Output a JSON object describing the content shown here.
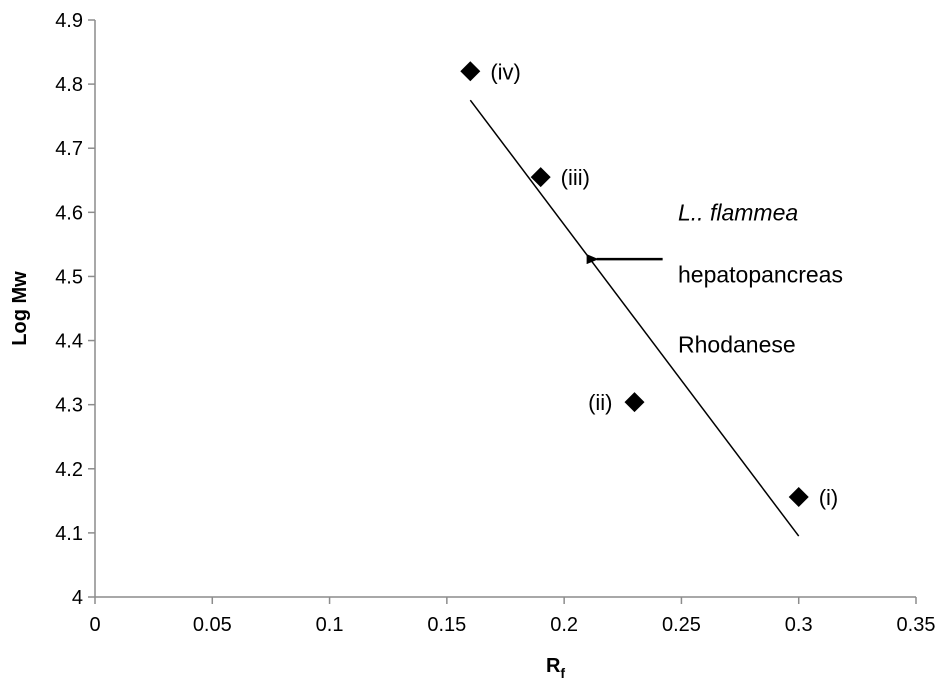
{
  "chart_data": {
    "type": "scatter",
    "title": "",
    "xlabel": "R",
    "xlabel_subscript": "f",
    "ylabel": "Log Mw",
    "xlim": [
      0,
      0.35
    ],
    "ylim": [
      4,
      4.9
    ],
    "x_ticks": [
      0,
      0.05,
      0.1,
      0.15,
      0.2,
      0.25,
      0.3,
      0.35
    ],
    "x_tick_labels": [
      "0",
      "0.05",
      "0.1",
      "0.15",
      "0.2",
      "0.25",
      "0.3",
      "0.35"
    ],
    "y_ticks": [
      4,
      4.1,
      4.2,
      4.3,
      4.4,
      4.5,
      4.6,
      4.7,
      4.8,
      4.9
    ],
    "y_tick_labels": [
      "4",
      "4.1",
      "4.2",
      "4.3",
      "4.4",
      "4.5",
      "4.6",
      "4.7",
      "4.8",
      "4.9"
    ],
    "grid": false,
    "marker": "diamond",
    "marker_color": "#000000",
    "points": [
      {
        "x": 0.3,
        "y": 4.156,
        "label": "(i)",
        "label_side": "right"
      },
      {
        "x": 0.23,
        "y": 4.304,
        "label": "(ii)",
        "label_side": "left"
      },
      {
        "x": 0.19,
        "y": 4.655,
        "label": "(iii)",
        "label_side": "right"
      },
      {
        "x": 0.16,
        "y": 4.82,
        "label": "(iv)",
        "label_side": "right"
      }
    ],
    "trendline": {
      "type": "linear",
      "x_start": 0.16,
      "y_start": 4.775,
      "x_end": 0.3,
      "y_end": 4.095,
      "color": "#000000"
    },
    "annotation": {
      "lines": [
        "L.. flammea",
        "hepatopancreas",
        "Rhodanese"
      ],
      "italic_line": 0,
      "arrow_target": {
        "x": 0.213,
        "y": 4.527
      }
    }
  }
}
